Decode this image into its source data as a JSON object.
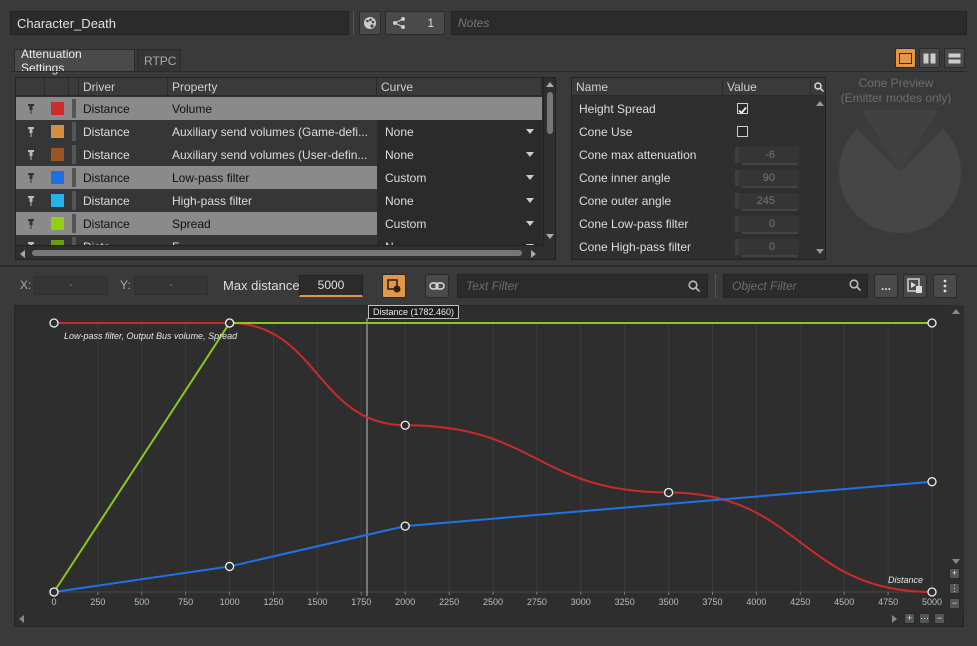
{
  "header": {
    "object_name": "Character_Death",
    "share_count": "1",
    "notes_placeholder": "Notes"
  },
  "tabs": [
    {
      "label": "Attenuation Settings",
      "active": true
    },
    {
      "label": "RTPC",
      "active": false
    }
  ],
  "curve_table": {
    "columns": [
      "Driver",
      "Property",
      "Curve"
    ],
    "rows": [
      {
        "color": "#d12c2c",
        "driver": "Distance",
        "property": "Volume",
        "curve": "",
        "highlight": true
      },
      {
        "color": "#d78e3f",
        "driver": "Distance",
        "property": "Auxiliary send volumes (Game-defi...",
        "curve": "None",
        "highlight": false
      },
      {
        "color": "#9a5324",
        "driver": "Distance",
        "property": "Auxiliary send volumes (User-defin...",
        "curve": "None",
        "highlight": false
      },
      {
        "color": "#1e6fe0",
        "driver": "Distance",
        "property": "Low-pass filter",
        "curve": "Custom",
        "highlight": true
      },
      {
        "color": "#22b4ea",
        "driver": "Distance",
        "property": "High-pass filter",
        "curve": "None",
        "highlight": false
      },
      {
        "color": "#8fd010",
        "driver": "Distance",
        "property": "Spread",
        "curve": "Custom",
        "highlight": true
      },
      {
        "color": "#6aa010",
        "driver": "Dista...",
        "property": "F...",
        "curve": "N...",
        "highlight": false
      }
    ]
  },
  "cone_table": {
    "columns": [
      "Name",
      "Value"
    ],
    "rows": [
      {
        "name": "Height Spread",
        "type": "check",
        "checked": true
      },
      {
        "name": "Cone Use",
        "type": "check",
        "checked": false
      },
      {
        "name": "Cone max attenuation",
        "type": "value",
        "value": "-6"
      },
      {
        "name": "Cone inner angle",
        "type": "value",
        "value": "90"
      },
      {
        "name": "Cone outer angle",
        "type": "value",
        "value": "245"
      },
      {
        "name": "Cone Low-pass filter",
        "type": "value",
        "value": "0"
      },
      {
        "name": "Cone High-pass filter",
        "type": "value",
        "value": "0"
      }
    ]
  },
  "cone_preview": {
    "title": "Cone Preview",
    "subtitle": "(Emitter modes only)"
  },
  "graph_toolbar": {
    "x_label": "X:",
    "x_value": "-",
    "y_label": "Y:",
    "y_value": "-",
    "max_distance_label": "Max distance",
    "max_distance_value": "5000",
    "text_filter_placeholder": "Text Filter",
    "object_filter_placeholder": "Object Filter",
    "more_label": "..."
  },
  "graph": {
    "legend": "Low-pass filter, Output Bus volume, Spread",
    "cursor_label": "Distance (1782.460)",
    "x_axis_title": "Distance"
  },
  "chart_data": {
    "type": "line",
    "xlim": [
      0,
      5000
    ],
    "ylim": [
      0,
      1
    ],
    "x_ticks": [
      0,
      250,
      500,
      750,
      1000,
      1250,
      1500,
      1750,
      2000,
      2250,
      2500,
      2750,
      3000,
      3250,
      3500,
      3750,
      4000,
      4250,
      4500,
      4750,
      5000
    ],
    "cursor_x": 1782.46,
    "grid": true,
    "series": [
      {
        "color": "#cc2a2a",
        "smooth": true,
        "points": [
          [
            0,
            1
          ],
          [
            1000,
            1
          ],
          [
            2000,
            0.62
          ],
          [
            3500,
            0.37
          ],
          [
            5000,
            0
          ]
        ]
      },
      {
        "color": "#1f73e6",
        "smooth": false,
        "points": [
          [
            0,
            0
          ],
          [
            1000,
            0.095
          ],
          [
            2000,
            0.245
          ],
          [
            5000,
            0.41
          ]
        ]
      },
      {
        "color": "#8cc81a",
        "smooth": false,
        "points": [
          [
            0,
            0
          ],
          [
            1000,
            1
          ],
          [
            5000,
            1
          ]
        ]
      }
    ]
  },
  "colors": {
    "accent": "#e0974a",
    "background": "#3a3a3a",
    "graph_bg": "#2e2e2e"
  }
}
